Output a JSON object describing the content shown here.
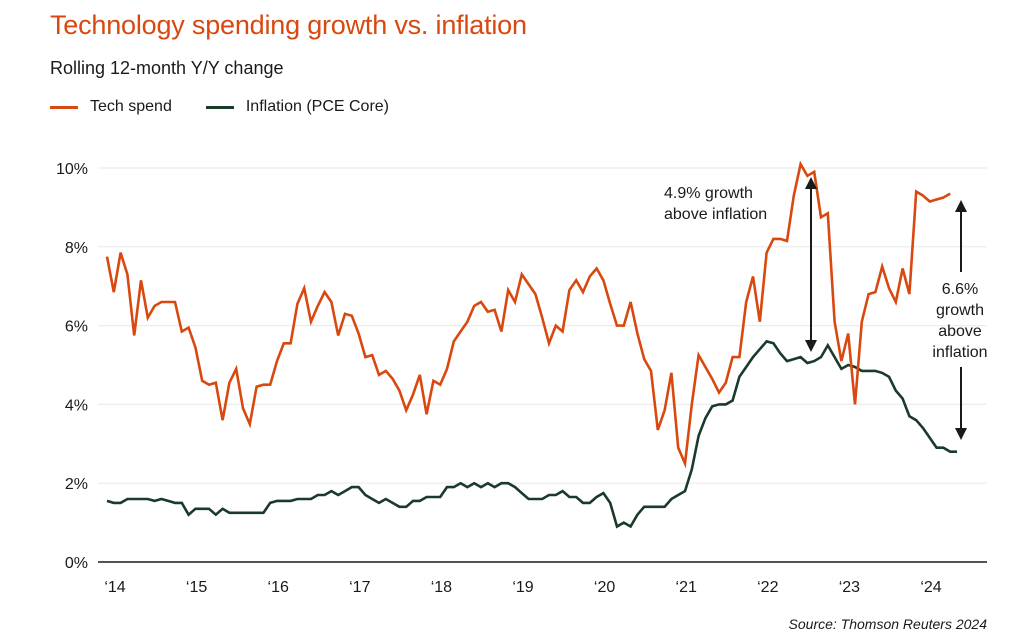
{
  "header": {
    "title": "Technology spending growth vs. inflation",
    "subtitle": "Rolling 12-month Y/Y change"
  },
  "legend": [
    {
      "label": "Tech spend",
      "color": "#d9480f"
    },
    {
      "label": "Inflation (PCE Core)",
      "color": "#1b3a29"
    }
  ],
  "source": "Source: Thomson Reuters 2024",
  "annotations": [
    {
      "lines": [
        "4.9% growth",
        "above inflation"
      ]
    },
    {
      "lines": [
        "6.6%",
        "growth",
        "above",
        "inflation"
      ]
    }
  ],
  "chart_data": {
    "type": "line",
    "title": "Technology spending growth vs. inflation",
    "subtitle": "Rolling 12-month Y/Y change",
    "xlabel": "",
    "ylabel": "",
    "x_start": "2014-01",
    "x_step": "month",
    "x_tick_labels": [
      "‘14",
      "‘15",
      "‘16",
      "‘17",
      "‘18",
      "‘19",
      "‘20",
      "‘21",
      "‘22",
      "‘23",
      "‘24"
    ],
    "x_range_years": [
      2014,
      2024.85
    ],
    "y_tick_labels": [
      "0%",
      "2%",
      "4%",
      "6%",
      "8%",
      "10%"
    ],
    "y_ticks": [
      0,
      2,
      4,
      6,
      8,
      10
    ],
    "ylim": [
      0,
      10
    ],
    "grid": true,
    "legend_position": "top-left",
    "series": [
      {
        "name": "Tech spend",
        "color": "#d9480f",
        "values": [
          7.75,
          6.85,
          7.85,
          7.3,
          5.75,
          7.15,
          6.2,
          6.5,
          6.6,
          6.6,
          6.6,
          5.85,
          5.95,
          5.45,
          4.6,
          4.5,
          4.55,
          3.6,
          4.55,
          4.9,
          3.9,
          3.5,
          4.45,
          4.5,
          4.5,
          5.1,
          5.55,
          5.55,
          6.55,
          6.95,
          6.1,
          6.5,
          6.85,
          6.6,
          5.75,
          6.3,
          6.25,
          5.8,
          5.2,
          5.25,
          4.75,
          4.85,
          4.65,
          4.35,
          3.85,
          4.25,
          4.75,
          3.75,
          4.6,
          4.5,
          4.9,
          5.6,
          5.85,
          6.1,
          6.5,
          6.6,
          6.35,
          6.4,
          5.85,
          6.9,
          6.6,
          7.3,
          7.05,
          6.8,
          6.2,
          5.55,
          6.0,
          5.85,
          6.9,
          7.15,
          6.85,
          7.25,
          7.45,
          7.15,
          6.55,
          6.0,
          6.0,
          6.6,
          5.8,
          5.15,
          4.85,
          3.35,
          3.85,
          4.8,
          2.9,
          2.5,
          4.0,
          5.25,
          4.95,
          4.65,
          4.3,
          4.55,
          5.2,
          5.2,
          6.6,
          7.25,
          6.1,
          7.85,
          8.2,
          8.2,
          8.15,
          9.3,
          10.1,
          9.8,
          9.9,
          8.75,
          8.85,
          6.1,
          5.1,
          5.8,
          4.0,
          6.1,
          6.8,
          6.85,
          7.5,
          6.95,
          6.6,
          7.45,
          6.8,
          9.4,
          9.3,
          9.15,
          9.2,
          9.25,
          9.35
        ]
      },
      {
        "name": "Inflation (PCE Core)",
        "color": "#1b3a29",
        "values": [
          1.55,
          1.5,
          1.5,
          1.6,
          1.6,
          1.6,
          1.6,
          1.55,
          1.6,
          1.55,
          1.5,
          1.5,
          1.2,
          1.35,
          1.35,
          1.35,
          1.2,
          1.35,
          1.25,
          1.25,
          1.25,
          1.25,
          1.25,
          1.25,
          1.5,
          1.55,
          1.55,
          1.55,
          1.6,
          1.6,
          1.6,
          1.7,
          1.7,
          1.8,
          1.7,
          1.8,
          1.9,
          1.9,
          1.7,
          1.6,
          1.5,
          1.6,
          1.5,
          1.4,
          1.4,
          1.55,
          1.55,
          1.65,
          1.65,
          1.65,
          1.9,
          1.9,
          2.0,
          1.9,
          2.0,
          1.9,
          2.0,
          1.9,
          2.0,
          2.0,
          1.9,
          1.75,
          1.6,
          1.6,
          1.6,
          1.7,
          1.7,
          1.8,
          1.65,
          1.65,
          1.5,
          1.5,
          1.65,
          1.75,
          1.5,
          0.9,
          1.0,
          0.9,
          1.2,
          1.4,
          1.4,
          1.4,
          1.4,
          1.6,
          1.7,
          1.8,
          2.35,
          3.2,
          3.65,
          3.95,
          4.0,
          4.0,
          4.1,
          4.7,
          4.95,
          5.2,
          5.4,
          5.6,
          5.55,
          5.3,
          5.1,
          5.15,
          5.2,
          5.05,
          5.1,
          5.2,
          5.5,
          5.2,
          4.9,
          5.0,
          4.95,
          4.85,
          4.85,
          4.85,
          4.8,
          4.7,
          4.35,
          4.15,
          3.7,
          3.6,
          3.4,
          3.15,
          2.9,
          2.9,
          2.8,
          2.8
        ]
      }
    ],
    "annotations": [
      {
        "text": "4.9% growth above inflation",
        "at": "2022-08",
        "from_value": 10.0,
        "to_value": 5.2
      },
      {
        "text": "6.6% growth above inflation",
        "at": "2024-06",
        "from_value": 9.35,
        "to_value": 2.8
      }
    ]
  }
}
